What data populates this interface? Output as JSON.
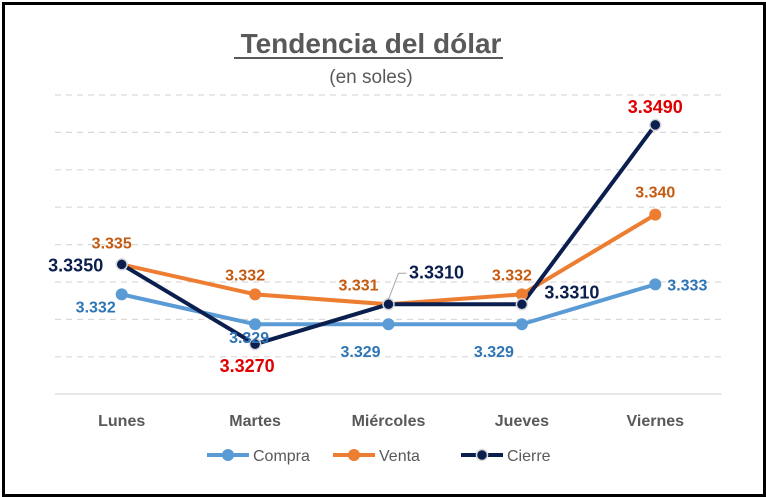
{
  "chart_data": {
    "type": "line",
    "title": "Tendencia del dólar",
    "subtitle": "(en soles)",
    "categories": [
      "Lunes",
      "Martes",
      "Miércoles",
      "Jueves",
      "Viernes"
    ],
    "ylim": [
      3.322,
      3.352
    ],
    "grid": true,
    "legend_position": "bottom",
    "series": [
      {
        "name": "Compra",
        "color": "#5b9bd5",
        "values": [
          3.332,
          3.329,
          3.329,
          3.329,
          3.333
        ],
        "labels": [
          "3.332",
          "3.329",
          "3.329",
          "3.329",
          "3.333"
        ],
        "label_colors": [
          "#2e75b6",
          "#2e75b6",
          "#2e75b6",
          "#2e75b6",
          "#2e75b6"
        ]
      },
      {
        "name": "Venta",
        "color": "#ed7d31",
        "values": [
          3.335,
          3.332,
          3.331,
          3.332,
          3.34
        ],
        "labels": [
          "3.335",
          "3.332",
          "3.331",
          "3.332",
          "3.340"
        ],
        "label_colors": [
          "#c55a11",
          "#c55a11",
          "#c55a11",
          "#c55a11",
          "#c55a11"
        ]
      },
      {
        "name": "Cierre",
        "color": "#0b1f4e",
        "values": [
          3.335,
          3.327,
          3.331,
          3.331,
          3.349
        ],
        "labels": [
          "3.3350",
          "3.3270",
          "3.3310",
          "3.3310",
          "3.3490"
        ],
        "label_colors": [
          "#0b1f4e",
          "#e00000",
          "#0b1f4e",
          "#0b1f4e",
          "#e00000"
        ]
      }
    ]
  }
}
